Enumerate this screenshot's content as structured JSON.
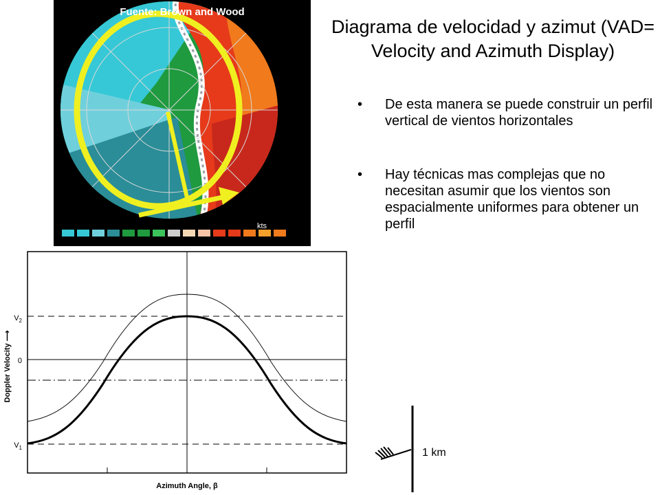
{
  "slide": {
    "title": "Diagrama de velocidad y azimut (VAD= Velocity and Azimuth Display)",
    "bullets": [
      "De esta manera se puede construir un perfil vertical de vientos horizontales",
      "Hay técnicas mas complejas que no necesitan asumir que los vientos son espacialmente uniformes para obtener un perfil"
    ]
  },
  "radar_image": {
    "source_credit": "Fuente: Brown and Wood",
    "units_label": "kts",
    "overlay_color": "#f0f020",
    "colors": {
      "cyan": "#36c8d6",
      "green": "#1f9a3e",
      "red": "#e63a1a",
      "orange": "#f07a1c"
    }
  },
  "chart_data": {
    "type": "line",
    "xlabel": "Azimuth Angle, β",
    "ylabel": "Doppler Velocity ⟶",
    "ytick_labels": [
      "V2",
      "0",
      "V1"
    ],
    "curves": [
      "thick cosine between V1 and V2",
      "thin cosine shifted upward"
    ],
    "grid": false
  },
  "annotation": {
    "height_label": "1 km"
  }
}
